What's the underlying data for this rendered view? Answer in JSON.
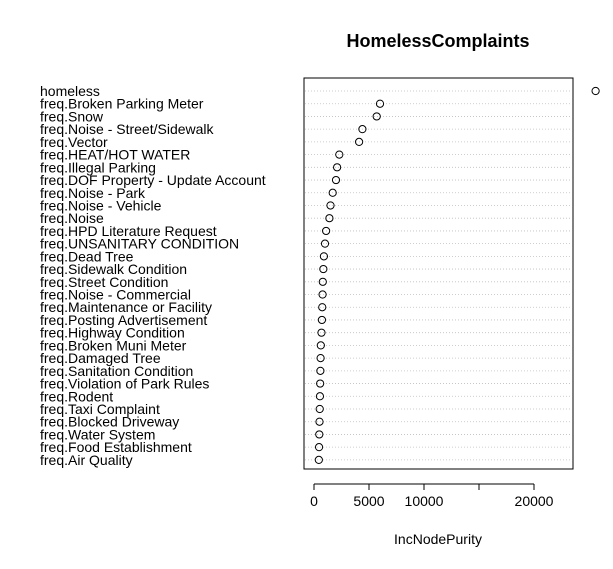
{
  "chart_data": {
    "type": "scatter",
    "title": "HomelessComplaints",
    "xlabel": "IncNodePurity",
    "ylabel": "",
    "xlim": [
      -2000,
      27500
    ],
    "xticks": [
      0,
      5000,
      10000,
      15000,
      20000
    ],
    "xtick_labels": [
      "0",
      "5000",
      "10000",
      "",
      "20000"
    ],
    "grid": "dotted horizontal",
    "categories": [
      "homeless",
      "freq.Broken Parking Meter",
      "freq.Snow",
      "freq.Noise - Street/Sidewalk",
      "freq.Vector",
      "freq.HEAT/HOT WATER",
      "freq.Illegal Parking",
      "freq.DOF Property - Update Account",
      "freq.Noise - Park",
      "freq.Noise - Vehicle",
      "freq.Noise",
      "freq.HPD Literature Request",
      "freq.UNSANITARY CONDITION",
      "freq.Dead Tree",
      "freq.Sidewalk Condition",
      "freq.Street Condition",
      "freq.Noise - Commercial",
      "freq.Maintenance or Facility",
      "freq.Posting Advertisement",
      "freq.Highway Condition",
      "freq.Broken Muni Meter",
      "freq.Damaged Tree",
      "freq.Sanitation Condition",
      "freq.Violation of Park Rules",
      "freq.Rodent",
      "freq.Taxi Complaint",
      "freq.Blocked Driveway",
      "freq.Water System",
      "freq.Food Establishment",
      "freq.Air Quality"
    ],
    "values": [
      25600,
      6000,
      5700,
      4400,
      4100,
      2300,
      2100,
      2000,
      1700,
      1500,
      1400,
      1100,
      1000,
      900,
      850,
      800,
      780,
      750,
      720,
      680,
      620,
      600,
      580,
      560,
      540,
      520,
      500,
      480,
      460,
      440
    ]
  }
}
